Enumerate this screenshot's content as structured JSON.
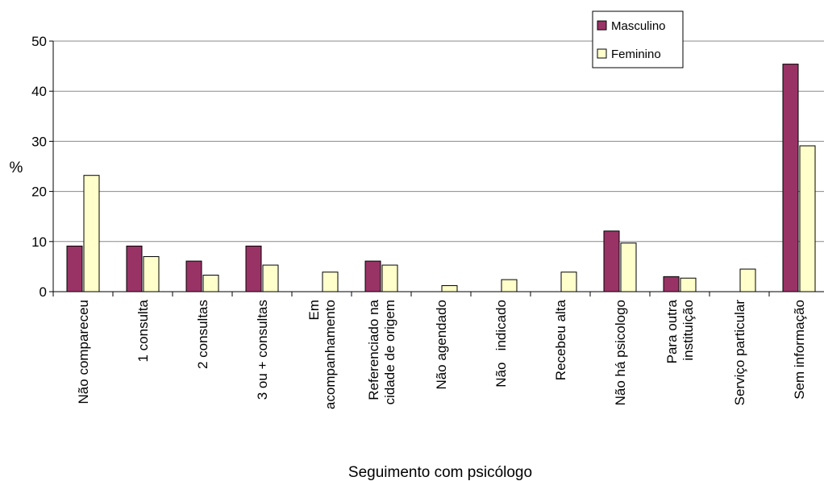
{
  "chart_data": {
    "type": "bar",
    "title": "",
    "xlabel": "Seguimento com psicólogo",
    "ylabel": "%",
    "ylim": [
      0,
      50
    ],
    "yticks": [
      0,
      10,
      20,
      30,
      40,
      50
    ],
    "grid": true,
    "legend_position": "top-right",
    "categories": [
      [
        "Não compareceu"
      ],
      [
        "1 consulta"
      ],
      [
        "2 consultas"
      ],
      [
        "3 ou + consultas"
      ],
      [
        "Em",
        "acompanhamento"
      ],
      [
        "Referenciado na",
        "cidade de origem"
      ],
      [
        "Não agendado"
      ],
      [
        "Não   indicado"
      ],
      [
        "Recebeu alta"
      ],
      [
        "Não há psicologo"
      ],
      [
        "Para outra",
        "instituição"
      ],
      [
        "Serviço particular"
      ],
      [
        "Sem informação"
      ]
    ],
    "series": [
      {
        "name": "Masculino",
        "color": "#993366",
        "values": [
          9.1,
          9.1,
          6.1,
          9.1,
          0,
          6.1,
          0,
          0,
          0,
          12.1,
          3.0,
          0,
          45.4
        ]
      },
      {
        "name": "Feminino",
        "color": "#FFFFCC",
        "values": [
          23.2,
          7.0,
          3.3,
          5.3,
          3.9,
          5.3,
          1.2,
          2.4,
          3.9,
          9.7,
          2.7,
          4.5,
          29.1
        ]
      }
    ]
  }
}
